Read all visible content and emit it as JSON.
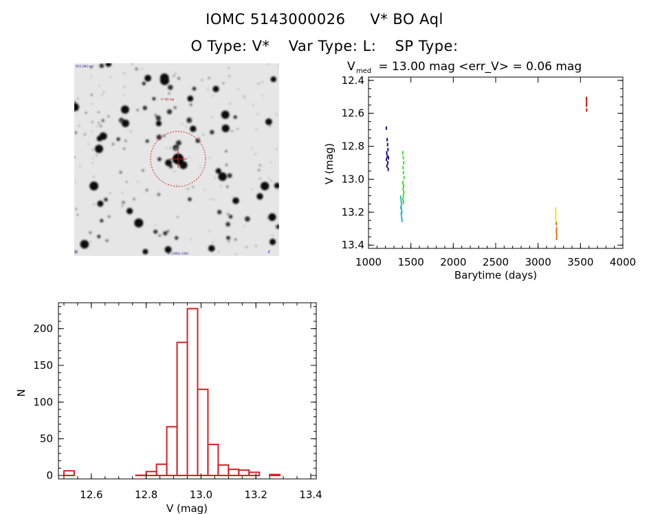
{
  "header": {
    "id_line": "IOMC 5143000026",
    "star_name": "V* BO Aql",
    "o_type": "O Type: V*",
    "var_type": "Var Type: L:",
    "sp_type": "SP Type:"
  },
  "image_panel": {
    "label_top_left": "PGS 2MS red",
    "label_marker": "V* BO Aql",
    "label_bottom_center": "A. (1993) 1000",
    "label_bottom_left": "S",
    "label_bottom_right": "E"
  },
  "chart_data": [
    {
      "type": "scatter",
      "title_prefix": "V",
      "title_sub": "med",
      "title": " = 13.00 mag <err_V> = 0.06 mag",
      "xlabel": "Barytime (days)",
      "ylabel": "V (mag)",
      "xlim": [
        1000,
        4000
      ],
      "ylim": [
        13.42,
        12.38
      ],
      "xticks": [
        1000,
        1500,
        2000,
        2500,
        3000,
        3500,
        4000
      ],
      "yticks": [
        12.4,
        12.6,
        12.8,
        13.0,
        13.2,
        13.4
      ],
      "ytick_labels": [
        "12.4",
        "12.6",
        "12.8",
        "13.0",
        "13.2",
        "13.4"
      ],
      "series": [
        {
          "name": "group1",
          "color": "#1a0a8c",
          "x": [
            1210,
            1220,
            1225,
            1230,
            1215,
            1222,
            1235,
            1212,
            1228,
            1218,
            1232
          ],
          "y": [
            12.69,
            12.76,
            12.79,
            12.82,
            12.84,
            12.86,
            12.87,
            12.88,
            12.9,
            12.92,
            12.94
          ]
        },
        {
          "name": "group2",
          "color": "#1fb8c8",
          "x": [
            1380,
            1385,
            1390,
            1382,
            1388,
            1393,
            1386,
            1391,
            1395
          ],
          "y": [
            13.11,
            13.13,
            13.15,
            13.17,
            13.18,
            13.2,
            13.21,
            13.23,
            13.25
          ]
        },
        {
          "name": "group3",
          "color": "#36e024",
          "x": [
            1405,
            1410,
            1415,
            1408,
            1412,
            1418,
            1406,
            1414,
            1409,
            1416,
            1411,
            1407,
            1413
          ],
          "y": [
            12.84,
            12.87,
            12.9,
            12.93,
            12.96,
            12.99,
            13.02,
            13.04,
            13.06,
            13.08,
            13.1,
            13.12,
            13.14
          ]
        },
        {
          "name": "group4",
          "color": "#f0e81c",
          "x": [
            3205,
            3208,
            3210,
            3206,
            3212
          ],
          "y": [
            13.18,
            13.2,
            13.22,
            13.24,
            13.26
          ]
        },
        {
          "name": "group5",
          "color": "#e07014",
          "x": [
            3215,
            3218,
            3216,
            3220,
            3217
          ],
          "y": [
            13.27,
            13.3,
            13.32,
            13.34,
            13.36
          ]
        },
        {
          "name": "group6",
          "color": "#c81414",
          "x": [
            3570,
            3572,
            3571,
            3573
          ],
          "y": [
            12.51,
            12.53,
            12.55,
            12.58
          ]
        }
      ]
    },
    {
      "type": "bar",
      "xlabel": "V (mag)",
      "ylabel": "N",
      "xlim": [
        12.48,
        13.42
      ],
      "ylim": [
        0,
        240
      ],
      "xticks": [
        12.6,
        12.8,
        13.0,
        13.2,
        13.4
      ],
      "xtick_labels": [
        "12.6",
        "12.8",
        "13.0",
        "13.2",
        "13.4"
      ],
      "yticks": [
        0,
        50,
        100,
        150,
        200
      ],
      "bin_width": 0.0375,
      "bins": [
        12.5,
        12.5375,
        12.575,
        12.6125,
        12.65,
        12.6875,
        12.725,
        12.7625,
        12.8,
        12.8375,
        12.875,
        12.9125,
        12.95,
        12.9875,
        13.025,
        13.0625,
        13.1,
        13.1375,
        13.175,
        13.2125,
        13.25,
        13.2875,
        13.325,
        13.3625
      ],
      "values": [
        11,
        3,
        1,
        0,
        1,
        0,
        2,
        5,
        10,
        20,
        71,
        186,
        232,
        122,
        47,
        19,
        13,
        12,
        9,
        4,
        6,
        3,
        0,
        0
      ],
      "bar_color": "#d42020"
    }
  ]
}
